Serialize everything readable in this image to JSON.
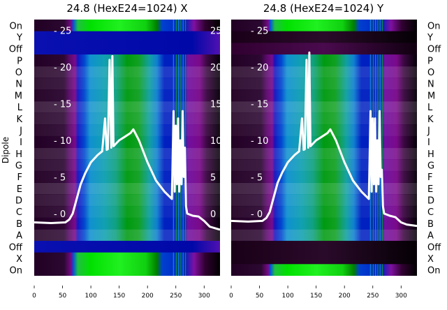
{
  "chart_data": [
    {
      "type": "heatmap",
      "title": "24.8 (HexE24=1024) X",
      "ylabel": "Dipole",
      "row_labels": [
        "On",
        "Y",
        "Off",
        "P",
        "O",
        "N",
        "M",
        "L",
        "K",
        "J",
        "I",
        "H",
        "G",
        "F",
        "E",
        "D",
        "C",
        "B",
        "A",
        "Off",
        "X",
        "On"
      ],
      "row_styles": [
        "on",
        "band",
        "band",
        "mid",
        "mid",
        "mid",
        "mid",
        "mid",
        "mid",
        "mid",
        "mid",
        "mid",
        "mid",
        "mid",
        "mid",
        "mid",
        "mid",
        "mid",
        "mid",
        "band",
        "on",
        "on"
      ],
      "xticks": [
        0,
        50,
        100,
        150,
        200,
        250,
        300
      ],
      "xlim": [
        0,
        328
      ],
      "overlay_yticks": [
        0,
        5,
        10,
        15,
        20,
        25
      ],
      "overlay_ylim": [
        -8.5,
        26.5
      ],
      "overlay_line": {
        "color": "#ffffff",
        "x": [
          0,
          30,
          55,
          62,
          68,
          75,
          82,
          90,
          100,
          112,
          120,
          125,
          128,
          130,
          133,
          136,
          138,
          140,
          150,
          160,
          170,
          175,
          185,
          200,
          215,
          230,
          243,
          246,
          248,
          250,
          252,
          254,
          256,
          258,
          260,
          262,
          264,
          266,
          268,
          270,
          280,
          290,
          300,
          310,
          328
        ],
        "y": [
          -1.2,
          -1.3,
          -1.2,
          -0.8,
          0,
          2,
          4,
          5.5,
          7,
          8,
          8.5,
          13,
          8.7,
          8.8,
          21,
          9,
          21.5,
          9.2,
          10,
          10.5,
          11,
          11.5,
          10,
          7,
          4.5,
          3,
          2,
          14,
          3,
          12,
          4,
          13,
          3,
          10,
          4,
          14,
          5,
          9,
          1,
          0,
          -0.3,
          -0.4,
          -1,
          -1.8,
          -2.2
        ]
      }
    },
    {
      "type": "heatmap",
      "title": "24.8 (HexE24=1024) Y",
      "row_labels": [
        "On",
        "Y",
        "Off",
        "P",
        "O",
        "N",
        "M",
        "L",
        "K",
        "J",
        "I",
        "H",
        "G",
        "F",
        "E",
        "D",
        "C",
        "B",
        "A",
        "Off",
        "X",
        "On"
      ],
      "row_styles": [
        "on",
        "dark",
        "darkp",
        "mid",
        "mid",
        "mid",
        "mid",
        "mid",
        "mid",
        "mid",
        "mid",
        "mid",
        "mid",
        "mid",
        "mid",
        "mid",
        "mid",
        "mid",
        "mid",
        "dark",
        "dark",
        "on"
      ],
      "xticks": [
        0,
        50,
        100,
        150,
        200,
        250,
        300
      ],
      "xlim": [
        0,
        328
      ],
      "overlay_yticks": [
        0,
        5,
        10,
        15,
        20,
        25
      ],
      "overlay_ylim": [
        -8.5,
        26.5
      ],
      "overlay_line": {
        "color": "#ffffff",
        "x": [
          0,
          30,
          55,
          62,
          68,
          75,
          82,
          90,
          100,
          112,
          120,
          125,
          128,
          130,
          133,
          136,
          138,
          140,
          150,
          160,
          170,
          175,
          185,
          200,
          215,
          230,
          243,
          246,
          248,
          250,
          252,
          254,
          256,
          258,
          260,
          262,
          264,
          266,
          268,
          270,
          280,
          290,
          300,
          310,
          328
        ],
        "y": [
          -1.0,
          -1.1,
          -1.0,
          -0.6,
          0.2,
          2.2,
          4.2,
          5.6,
          7,
          8,
          8.5,
          13,
          8.7,
          8.8,
          21,
          9,
          22,
          9.2,
          10,
          10.5,
          11,
          11.5,
          10,
          7,
          4.5,
          3,
          2,
          14,
          3,
          13,
          4,
          13,
          3,
          10,
          4,
          14,
          5,
          6,
          1,
          0,
          -0.3,
          -0.5,
          -1.2,
          -1.5,
          -1.7
        ]
      }
    }
  ]
}
